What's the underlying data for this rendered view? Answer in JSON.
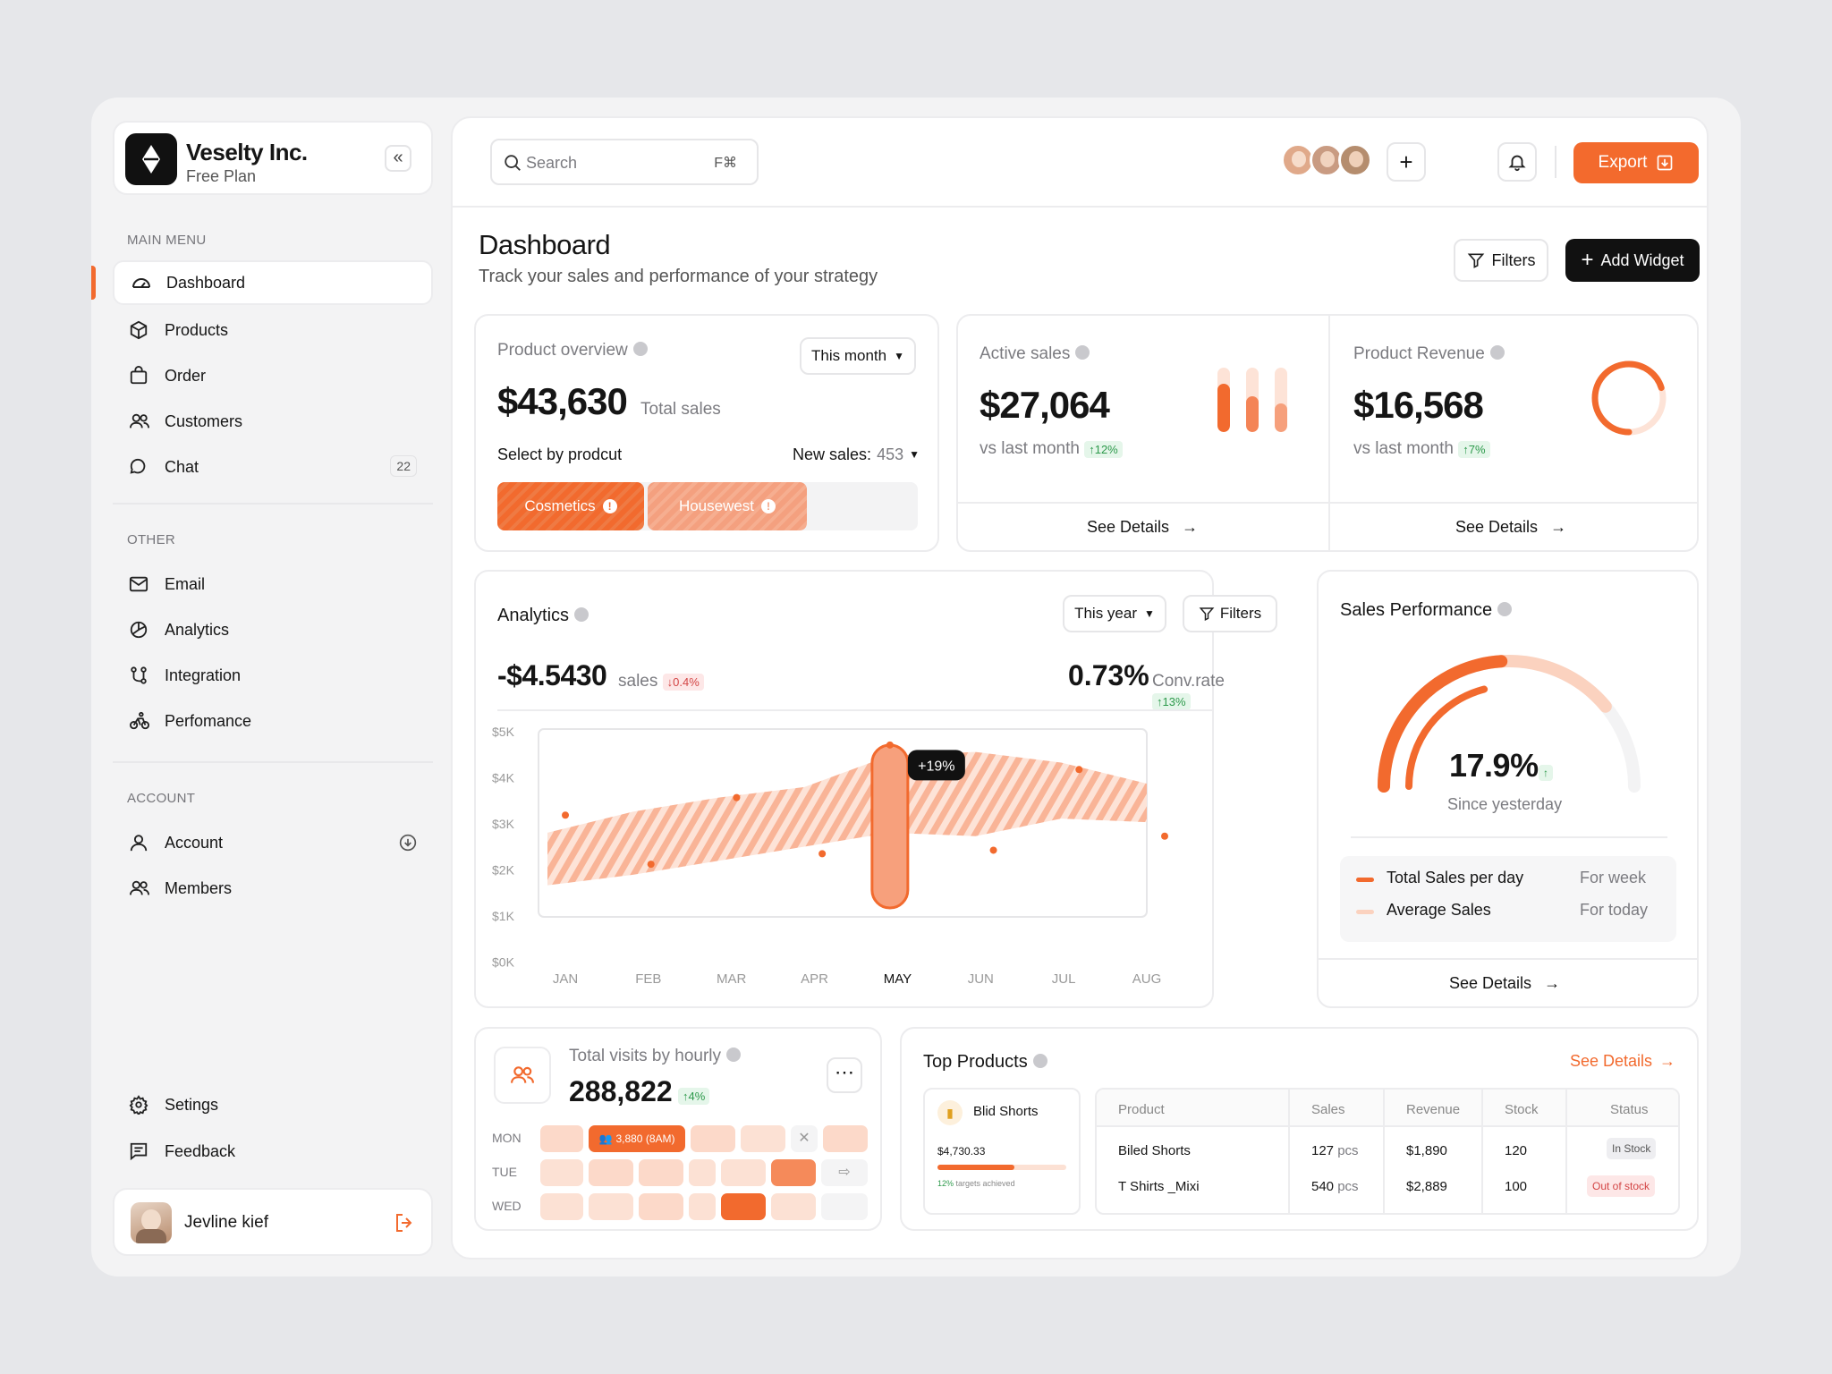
{
  "brand": {
    "name": "Veselty Inc.",
    "plan": "Free Plan"
  },
  "sidebar": {
    "main_menu_label": "MAIN MENU",
    "main_items": [
      {
        "label": "Dashboard"
      },
      {
        "label": "Products"
      },
      {
        "label": "Order"
      },
      {
        "label": "Customers"
      },
      {
        "label": "Chat",
        "badge": "22"
      }
    ],
    "other_label": "OTHER",
    "other_items": [
      {
        "label": "Email"
      },
      {
        "label": "Analytics"
      },
      {
        "label": "Integration"
      },
      {
        "label": "Perfomance"
      }
    ],
    "account_label": "ACCOUNT",
    "account_items": [
      {
        "label": "Account"
      },
      {
        "label": "Members"
      }
    ],
    "bottom_items": [
      {
        "label": "Setings"
      },
      {
        "label": "Feedback"
      }
    ],
    "user": {
      "name": "Jevline kief"
    }
  },
  "topbar": {
    "search_placeholder": "Search",
    "shortcut": "F⌘",
    "export_label": "Export"
  },
  "header": {
    "title": "Dashboard",
    "subtitle": "Track your sales and performance of your strategy",
    "filters_label": "Filters",
    "add_widget_label": "Add Widget"
  },
  "product_overview": {
    "title": "Product overview",
    "period": "This month",
    "value": "$43,630",
    "value_caption": "Total sales",
    "select_label": "Select by prodcut",
    "new_sales_label": "New sales:",
    "new_sales_value": "453",
    "segments": [
      {
        "label": "Cosmetics"
      },
      {
        "label": "Housewest"
      }
    ]
  },
  "active_sales": {
    "title": "Active sales",
    "value": "$27,064",
    "compare": "vs last month",
    "change": "↑12%",
    "see_details": "See Details",
    "bars": [
      {
        "fill": 0.75
      },
      {
        "fill": 0.55
      },
      {
        "fill": 0.45
      }
    ]
  },
  "product_revenue": {
    "title": "Product Revenue",
    "value": "$16,568",
    "compare": "vs last month",
    "change": "↑7%",
    "see_details": "See Details",
    "ring_fraction": 0.7
  },
  "analytics": {
    "title": "Analytics",
    "period": "This year",
    "filters_label": "Filters",
    "sales_value": "-$4.5430",
    "sales_label": "sales",
    "sales_change": "↓0.4%",
    "conv_value": "0.73%",
    "conv_label": "Conv.rate",
    "conv_change": "↑13%",
    "tooltip": "+19%",
    "highlight_month": "MAY"
  },
  "chart_data": {
    "type": "area",
    "categories": [
      "JAN",
      "FEB",
      "MAR",
      "APR",
      "MAY",
      "JUN",
      "JUL",
      "AUG"
    ],
    "y_ticks": [
      "$5K",
      "$4K",
      "$3K",
      "$2K",
      "$1K",
      "$0K"
    ],
    "ylim": [
      0,
      5000
    ],
    "series": [
      {
        "values": [
          2800,
          1400,
          3300,
          1700,
          4800,
          1800,
          4100,
          2200
        ]
      }
    ],
    "band_upper": [
      2300,
      2900,
      3300,
      3600,
      4500,
      4600,
      4300,
      3700
    ],
    "band_lower": [
      800,
      1100,
      1500,
      1900,
      2300,
      2200,
      2700,
      2600
    ]
  },
  "sales_performance": {
    "title": "Sales Performance",
    "value": "17.9%",
    "change": "↑",
    "caption": "Since yesterday",
    "gauge_primary": 0.48,
    "gauge_secondary": 0.78,
    "legend": [
      {
        "label": "Total Sales per day",
        "period": "For week",
        "color": "#f26a2e"
      },
      {
        "label": "Average Sales",
        "period": "For today",
        "color": "#fbd2bf"
      }
    ],
    "see_details": "See Details"
  },
  "visits": {
    "title": "Total visits by hourly",
    "value": "288,822",
    "change": "↑4%",
    "days": [
      "MON",
      "TUE",
      "WED"
    ],
    "highlight_label": "3,880 (8AM)"
  },
  "top_products": {
    "title": "Top Products",
    "see_details": "See Details",
    "featured": {
      "name": "Blid Shorts",
      "amount": "$4,730.33",
      "progress": 0.6,
      "note_pct": "12%",
      "note_text": "targets achieved"
    },
    "columns": [
      "Product",
      "Sales",
      "Revenue",
      "Stock",
      "Status"
    ],
    "rows": [
      {
        "product": "Biled Shorts",
        "sales": "127",
        "sales_unit": "pcs",
        "revenue": "$1,890",
        "stock": "120",
        "status": "In Stock"
      },
      {
        "product": "T Shirts _Mixi",
        "sales": "540",
        "sales_unit": "pcs",
        "revenue": "$2,889",
        "stock": "100",
        "status": "Out of stock"
      }
    ]
  }
}
